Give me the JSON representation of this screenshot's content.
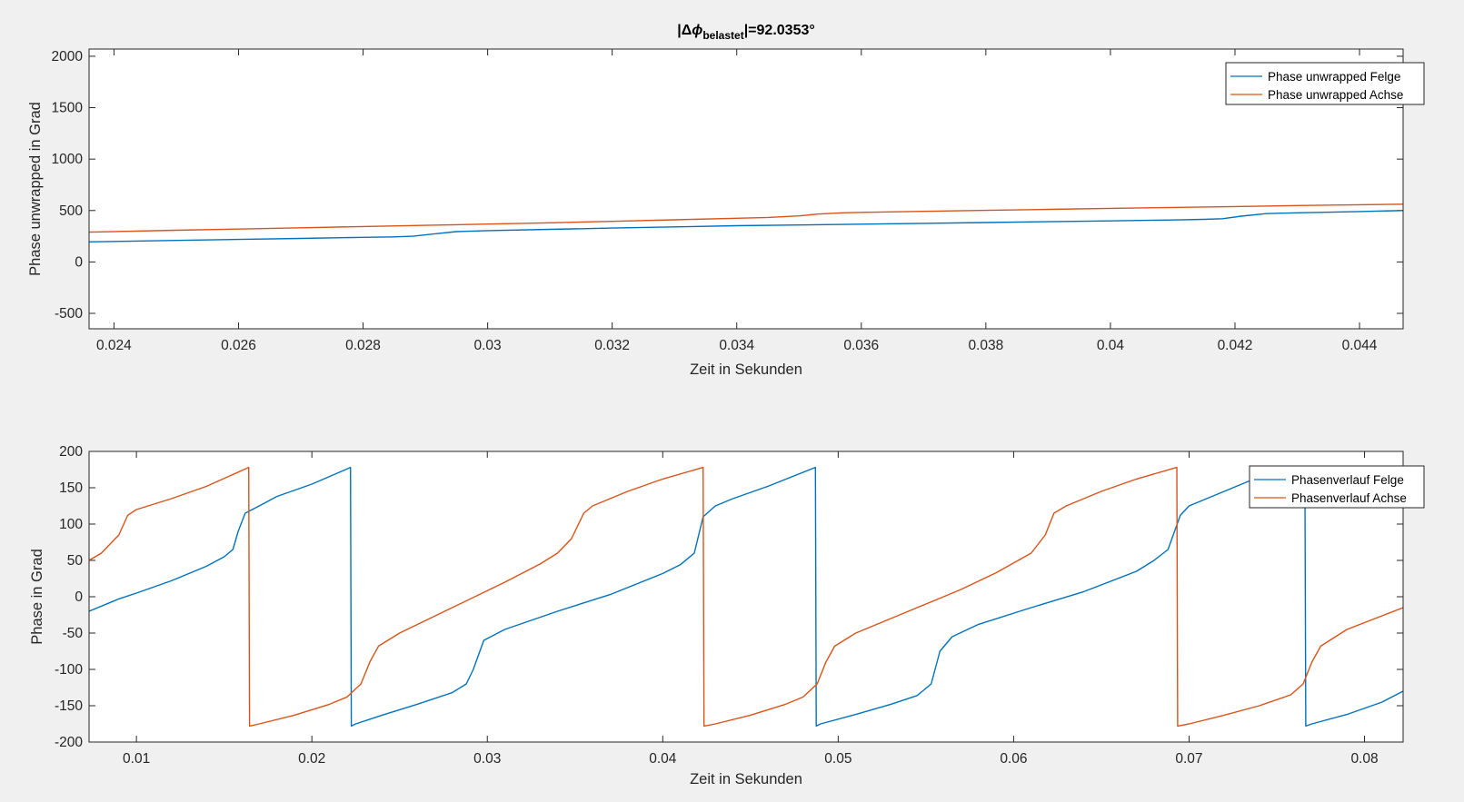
{
  "colors": {
    "felge": "#0072BD",
    "achse": "#D95319",
    "figure_background": "#f0f0f0",
    "axes_background": "#ffffff",
    "axis_line": "#262626"
  },
  "chart_data": [
    {
      "type": "line",
      "title": {
        "prefix": "|Δ",
        "symbol": "ϕ",
        "subscript": "belastet",
        "suffix": "|=92.0353°"
      },
      "xlabel": "Zeit in Sekunden",
      "ylabel": "Phase unwrapped in Grad",
      "xlim": [
        0.0236,
        0.0447
      ],
      "ylim": [
        -650,
        2070
      ],
      "xticks": [
        0.024,
        0.026,
        0.028,
        0.03,
        0.032,
        0.034,
        0.036,
        0.038,
        0.04,
        0.042,
        0.044
      ],
      "xtick_labels": [
        "0.024",
        "0.026",
        "0.028",
        "0.03",
        "0.032",
        "0.034",
        "0.036",
        "0.038",
        "0.04",
        "0.042",
        "0.044"
      ],
      "yticks": [
        -500,
        0,
        500,
        1000,
        1500,
        2000
      ],
      "ytick_labels": [
        "-500",
        "0",
        "500",
        "1000",
        "1500",
        "2000"
      ],
      "grid": false,
      "legend_position": "top-right",
      "series": [
        {
          "name": "Phase unwrapped Felge",
          "color_key": "felge",
          "x": [
            0.0236,
            0.025,
            0.026,
            0.027,
            0.028,
            0.0285,
            0.0288,
            0.0291,
            0.0295,
            0.03,
            0.031,
            0.032,
            0.033,
            0.034,
            0.035,
            0.036,
            0.037,
            0.038,
            0.039,
            0.04,
            0.041,
            0.0415,
            0.0418,
            0.0421,
            0.0425,
            0.043,
            0.044,
            0.0447
          ],
          "y": [
            195,
            209,
            219,
            229,
            239,
            244,
            250,
            270,
            295,
            305,
            317,
            329,
            341,
            352,
            359,
            367,
            375,
            383,
            391,
            399,
            408,
            414,
            420,
            445,
            470,
            478,
            490,
            500
          ]
        },
        {
          "name": "Phase unwrapped Achse",
          "color_key": "achse",
          "x": [
            0.0236,
            0.025,
            0.026,
            0.027,
            0.028,
            0.029,
            0.03,
            0.031,
            0.032,
            0.033,
            0.034,
            0.0345,
            0.035,
            0.0353,
            0.0357,
            0.036,
            0.037,
            0.038,
            0.039,
            0.04,
            0.041,
            0.042,
            0.043,
            0.044,
            0.0447
          ],
          "y": [
            290,
            308,
            320,
            332,
            344,
            356,
            368,
            381,
            395,
            410,
            425,
            433,
            448,
            465,
            478,
            482,
            492,
            502,
            511,
            521,
            530,
            539,
            548,
            556,
            562
          ]
        }
      ]
    },
    {
      "type": "line",
      "xlabel": "Zeit in Sekunden",
      "ylabel": "Phase in Grad",
      "xlim": [
        0.0073,
        0.0822
      ],
      "ylim": [
        -200,
        200
      ],
      "xticks": [
        0.01,
        0.02,
        0.03,
        0.04,
        0.05,
        0.06,
        0.07,
        0.08
      ],
      "xtick_labels": [
        "0.01",
        "0.02",
        "0.03",
        "0.04",
        "0.05",
        "0.06",
        "0.07",
        "0.08"
      ],
      "yticks": [
        -200,
        -150,
        -100,
        -50,
        0,
        50,
        100,
        150,
        200
      ],
      "ytick_labels": [
        "-200",
        "-150",
        "-100",
        "-50",
        "0",
        "50",
        "100",
        "150",
        "200"
      ],
      "grid": false,
      "legend_position": "top-right",
      "series": [
        {
          "name": "Phasenverlauf Felge",
          "color_key": "felge",
          "x": [
            0.0073,
            0.009,
            0.01,
            0.012,
            0.014,
            0.015,
            0.0155,
            0.0158,
            0.0162,
            0.017,
            0.018,
            0.02,
            0.0222,
            0.02225,
            0.0225,
            0.024,
            0.026,
            0.028,
            0.0288,
            0.0292,
            0.0298,
            0.031,
            0.034,
            0.037,
            0.04,
            0.041,
            0.0418,
            0.0423,
            0.043,
            0.044,
            0.046,
            0.0487,
            0.04875,
            0.049,
            0.051,
            0.053,
            0.0545,
            0.0553,
            0.0558,
            0.0565,
            0.058,
            0.061,
            0.064,
            0.067,
            0.068,
            0.0688,
            0.0695,
            0.07,
            0.072,
            0.074,
            0.0766,
            0.07665,
            0.077,
            0.079,
            0.081,
            0.0822
          ],
          "y": [
            -20,
            -3,
            5,
            22,
            42,
            55,
            65,
            90,
            115,
            125,
            138,
            155,
            178,
            -178,
            -175,
            -163,
            -148,
            -132,
            -120,
            -100,
            -60,
            -45,
            -20,
            3,
            32,
            44,
            60,
            110,
            125,
            135,
            152,
            178,
            -178,
            -175,
            -162,
            -148,
            -136,
            -120,
            -75,
            -55,
            -38,
            -15,
            7,
            35,
            50,
            65,
            112,
            125,
            145,
            165,
            178,
            -178,
            -175,
            -162,
            -145,
            -130
          ]
        },
        {
          "name": "Phasenverlauf Achse",
          "color_key": "achse",
          "x": [
            0.0073,
            0.008,
            0.009,
            0.0095,
            0.01,
            0.012,
            0.014,
            0.0164,
            0.01645,
            0.017,
            0.019,
            0.021,
            0.022,
            0.0228,
            0.0233,
            0.0238,
            0.025,
            0.028,
            0.031,
            0.033,
            0.034,
            0.0348,
            0.0355,
            0.036,
            0.038,
            0.04,
            0.0423,
            0.04235,
            0.043,
            0.045,
            0.047,
            0.048,
            0.0488,
            0.0493,
            0.0498,
            0.051,
            0.054,
            0.057,
            0.059,
            0.061,
            0.0618,
            0.0623,
            0.063,
            0.065,
            0.067,
            0.0693,
            0.06935,
            0.07,
            0.072,
            0.074,
            0.0758,
            0.0765,
            0.077,
            0.0775,
            0.079,
            0.0822
          ],
          "y": [
            50,
            60,
            85,
            112,
            120,
            135,
            152,
            178,
            -178,
            -175,
            -163,
            -148,
            -138,
            -120,
            -90,
            -68,
            -50,
            -15,
            20,
            45,
            60,
            80,
            115,
            125,
            145,
            162,
            178,
            -178,
            -175,
            -163,
            -148,
            -138,
            -120,
            -90,
            -68,
            -50,
            -20,
            10,
            33,
            60,
            85,
            115,
            125,
            145,
            162,
            178,
            -178,
            -175,
            -163,
            -150,
            -135,
            -120,
            -90,
            -68,
            -45,
            -15
          ]
        }
      ]
    }
  ]
}
